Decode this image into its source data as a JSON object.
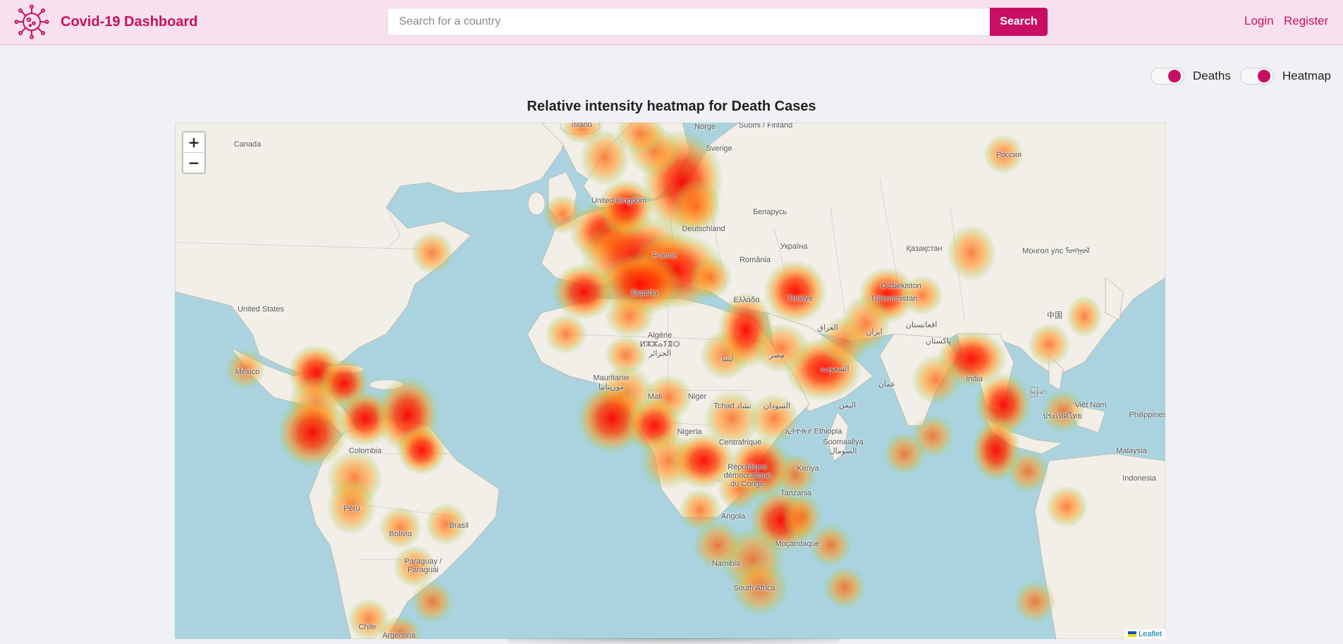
{
  "navbar": {
    "brand_title": "Covid-19 Dashboard",
    "logo_icon": "virus-icon",
    "search": {
      "placeholder": "Search for a country",
      "value": ""
    },
    "search_button": "Search",
    "links": {
      "login": "Login",
      "register": "Register"
    }
  },
  "controls": {
    "deaths_toggle": {
      "label": "Deaths",
      "on": true
    },
    "heatmap_toggle": {
      "label": "Heatmap",
      "on": true
    }
  },
  "map": {
    "title": "Relative intensity heatmap for Death Cases",
    "zoom_in": "+",
    "zoom_out": "−",
    "attribution": "Leaflet",
    "labels": {
      "island": "Ísland",
      "norge": "Norge",
      "finland": "Suomi / Finland",
      "sverige": "Sverige",
      "canada": "Canada",
      "rossiya": "Россия",
      "uk": "United Kingdom",
      "belarus": "Беларусь",
      "deutschland": "Deutschland",
      "ukraina": "Україна",
      "kazakhstan": "Қазақстан",
      "mongolia": "Монгол улс ᠮᠣᠩᠭᠣᠯ",
      "france": "France",
      "romania": "România",
      "uzbekistan": "Oʻzbekiston",
      "espana": "España",
      "ellada": "Ελλάδα",
      "turkiye": "Türkiye",
      "turkmenistan": "Türkmenistan",
      "united_states": "United States",
      "china": "中国",
      "afghanistan": "افغانستان",
      "iraq": "العراق",
      "iran": "ایران",
      "pakistan": "پاکستان",
      "algerie": "Algérie ⵍⵣⵣⴰⵢⴻⵔ الجزائر",
      "libya": "ليبيا",
      "misr": "مصر",
      "saudi": "السعودية",
      "mexico": "México",
      "india": "India",
      "myanmar": "မြန်မာ",
      "mauritanie": "Mauritanie موريتانيا",
      "oman": "عمان",
      "mali": "Mali",
      "niger": "Niger",
      "tchad": "Tchad تشاد",
      "sudan": "السودان",
      "yemen": "اليمن",
      "vietnam": "Việt Nam",
      "thailand": "ประเทศไทย",
      "philippines": "Philippines",
      "ethiopia": "ኢትዮጵያ Ethiopia",
      "nigeria": "Nigeria",
      "centrafrique": "Centrafrique",
      "somalia": "Soomaaliya الصومال",
      "colombia": "Colombia",
      "malaysia": "Malaysia",
      "drc": "République démocratique du Congo",
      "kenya": "Kenya",
      "indonesia": "Indonesia",
      "tanzania": "Tanzania",
      "peru": "Perú",
      "brasil": "Brasil",
      "bolivia": "Bolivia",
      "angola": "Angola",
      "mocambique": "Moçambique",
      "paraguay": "Paraguay / Paraguái",
      "namibia": "Namibia",
      "south_africa": "South Africa",
      "chile": "Chile",
      "argentina": "Argentina"
    }
  },
  "colors": {
    "brand": "#c90f63",
    "navbar_bg": "#f8e1ee",
    "page_bg": "#f0f1f4",
    "water": "#aad3df",
    "land": "#f2efe9"
  }
}
